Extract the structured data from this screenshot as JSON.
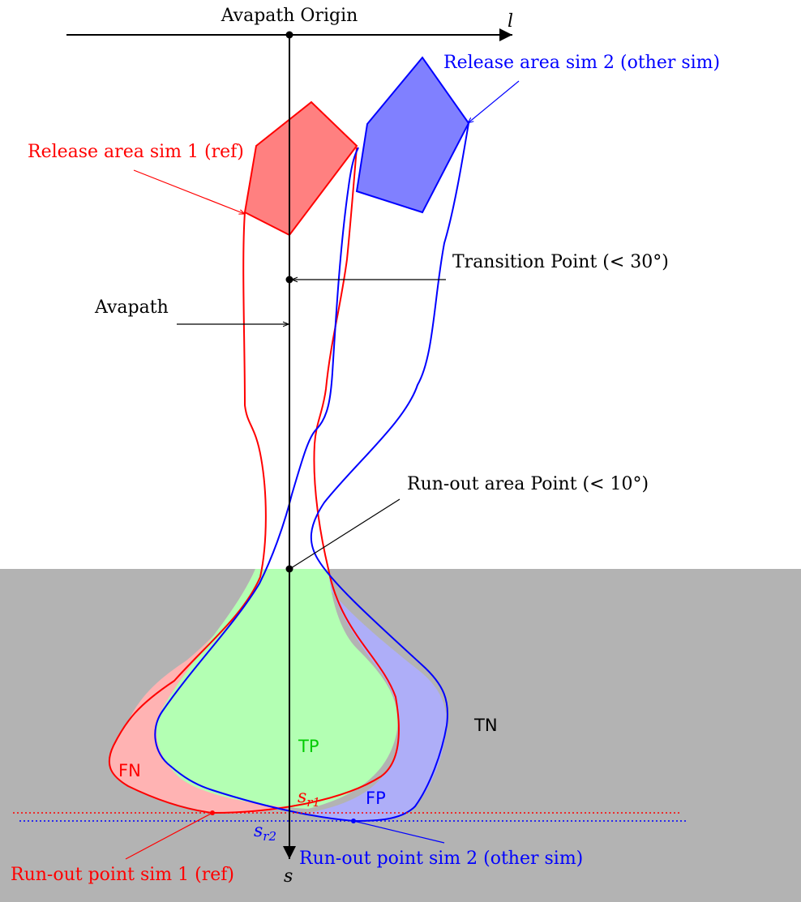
{
  "diagram": {
    "labels": {
      "origin": "Avapath Origin",
      "l_axis": "l",
      "s_axis": "s",
      "release_sim2": "Release area sim 2 (other sim)",
      "release_sim1": "Release area sim 1 (ref)",
      "transition_point": "Transition Point (< 30°)",
      "avapath": "Avapath",
      "runout_area_point": "Run-out area Point (< 10°)",
      "tn": "TN",
      "tp": "TP",
      "fn": "FN",
      "fp": "FP",
      "s_r1_base": "s",
      "s_r1_sub": "r1",
      "s_r2_base": "s",
      "s_r2_sub": "r2",
      "runout_sim2": "Run-out point sim 2 (other sim)",
      "runout_sim1": "Run-out point sim 1 (ref)"
    },
    "colors": {
      "ref": "#ff0000",
      "other": "#0000ff",
      "tp": "#00cc00",
      "runout_zone": "#b3b3b3",
      "axis": "#000000"
    }
  }
}
